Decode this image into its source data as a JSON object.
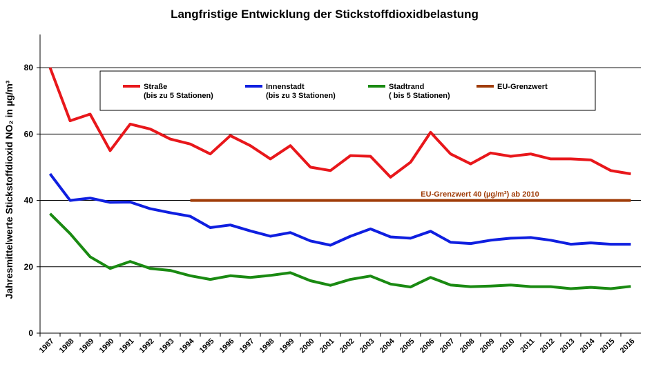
{
  "chart_data": {
    "type": "line",
    "title": "Langfristige Entwicklung der Stickstoffdioxidbelastung",
    "y_label": "Jahresmittelwerte Stickstoffdioxid NO₂ in µg/m³",
    "annotation": "EU-Grenzwert 40 (µg/m³) ab 2010",
    "categories": [
      "1987",
      "1988",
      "1989",
      "1990",
      "1991",
      "1992",
      "1993",
      "1994",
      "1995",
      "1996",
      "1997",
      "1998",
      "1999",
      "2000",
      "2001",
      "2002",
      "2003",
      "2004",
      "2005",
      "2006",
      "2007",
      "2008",
      "2009",
      "2010",
      "2011",
      "2012",
      "2013",
      "2014",
      "2015",
      "2016"
    ],
    "series": [
      {
        "name": "Straße",
        "legend_note": "(bis zu 5 Stationen)",
        "color": "#e8171b",
        "values": [
          80,
          64,
          66,
          55,
          63,
          61.5,
          58.5,
          57,
          54,
          59.5,
          56.5,
          52.5,
          56.5,
          50,
          49,
          53.5,
          53.3,
          47,
          51.5,
          60.5,
          54,
          51,
          54.3,
          53.3,
          54,
          52.5,
          52.5,
          52.2,
          49,
          48
        ]
      },
      {
        "name": "Innenstadt",
        "legend_note": "(bis zu 3 Stationen)",
        "color": "#0f1fe0",
        "values": [
          48,
          40,
          40.7,
          39.4,
          39.5,
          37.5,
          36.3,
          35.2,
          31.8,
          32.6,
          30.8,
          29.2,
          30.3,
          27.8,
          26.5,
          29.2,
          31.4,
          29,
          28.6,
          30.7,
          27.4,
          27,
          28,
          28.6,
          28.8,
          28,
          26.8,
          27.2,
          26.8,
          26.8
        ]
      },
      {
        "name": "Stadtrand",
        "legend_note": "( bis 5 Stationen)",
        "color": "#1a8a12",
        "values": [
          36,
          30,
          23,
          19.5,
          21.6,
          19.5,
          18.9,
          17.3,
          16.2,
          17.3,
          16.8,
          17.4,
          18.2,
          15.8,
          14.4,
          16.2,
          17.2,
          14.8,
          13.9,
          16.8,
          14.5,
          14,
          14.2,
          14.5,
          14,
          14,
          13.4,
          13.8,
          13.4,
          14.1
        ]
      },
      {
        "name": "EU-Grenzwert",
        "color": "#a03c08",
        "values": [
          null,
          null,
          null,
          null,
          null,
          null,
          null,
          40,
          40,
          40,
          40,
          40,
          40,
          40,
          40,
          40,
          40,
          40,
          40,
          40,
          40,
          40,
          40,
          40,
          40,
          40,
          40,
          40,
          40,
          40
        ]
      }
    ],
    "ylim": [
      0,
      90
    ],
    "yticks": [
      0,
      20,
      40,
      60,
      80
    ],
    "grid": true
  }
}
